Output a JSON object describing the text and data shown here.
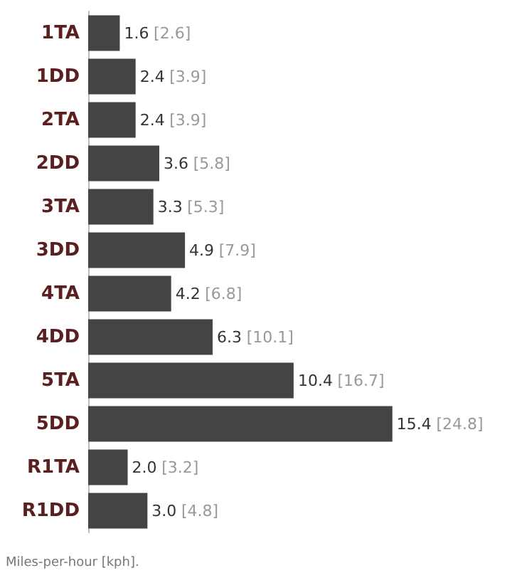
{
  "chart_data": {
    "type": "bar",
    "orientation": "horizontal",
    "categories": [
      "1TA",
      "1DD",
      "2TA",
      "2DD",
      "3TA",
      "3DD",
      "4TA",
      "4DD",
      "5TA",
      "5DD",
      "R1TA",
      "R1DD"
    ],
    "values": [
      1.6,
      2.4,
      2.4,
      3.6,
      3.3,
      4.9,
      4.2,
      6.3,
      10.4,
      15.4,
      2.0,
      3.0
    ],
    "value_labels": [
      "1.6 [2.6]",
      "2.4 [3.9]",
      "2.4 [3.9]",
      "3.6 [5.8]",
      "3.3 [5.3]",
      "4.9 [7.9]",
      "4.2 [6.8]",
      "6.3 [10.1]",
      "10.4 [16.7]",
      "15.4 [24.8]",
      "2.0 [3.2]",
      "3.0 [4.8]"
    ],
    "color": "#444444",
    "annotations": [
      "Miles-per-hour [kph]."
    ]
  }
}
